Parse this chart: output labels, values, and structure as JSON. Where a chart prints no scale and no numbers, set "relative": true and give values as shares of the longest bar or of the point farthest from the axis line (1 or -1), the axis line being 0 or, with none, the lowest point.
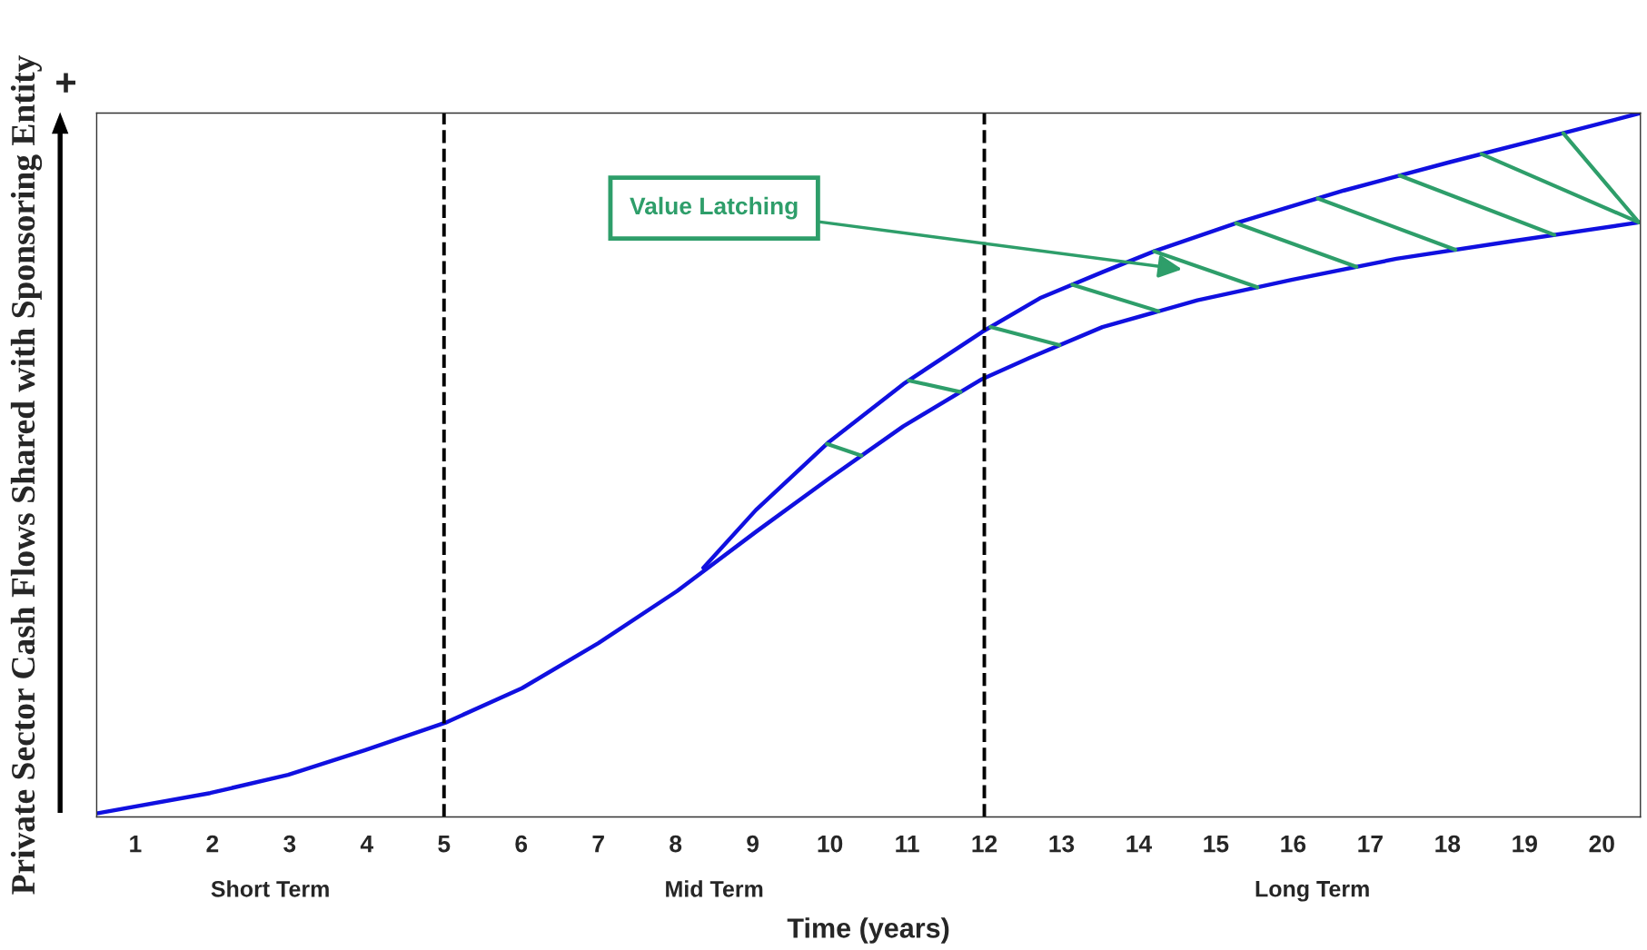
{
  "chart_data": {
    "type": "line",
    "relative": true,
    "xlabel": "Time (years)",
    "ylabel": "Private Sector Cash Flows Shared with Sponsoring Entity",
    "xlim": [
      0.5,
      20.5
    ],
    "xticks": [
      1,
      2,
      3,
      4,
      5,
      6,
      7,
      8,
      9,
      10,
      11,
      12,
      13,
      14,
      15,
      16,
      17,
      18,
      19,
      20
    ],
    "series": [
      {
        "color": "#1010e0",
        "x": [
          0.5,
          1.97,
          2.98,
          3.98,
          5.02,
          6.01,
          7.0,
          8.02,
          9.04,
          9.99,
          10.95,
          11.97,
          12.58,
          13.53,
          14.76,
          15.98,
          17.34,
          18.84,
          20.5
        ],
        "values": [
          0.005,
          0.034,
          0.06,
          0.095,
          0.134,
          0.183,
          0.247,
          0.321,
          0.405,
          0.481,
          0.555,
          0.622,
          0.652,
          0.696,
          0.734,
          0.763,
          0.793,
          0.818,
          0.845
        ]
      },
      {
        "color": "#1010e0",
        "x": [
          8.36,
          9.04,
          9.99,
          10.95,
          11.97,
          12.72,
          13.53,
          14.21,
          15.3,
          16.66,
          18.02,
          19.52,
          20.5
        ],
        "values": [
          0.354,
          0.436,
          0.533,
          0.615,
          0.689,
          0.737,
          0.774,
          0.804,
          0.845,
          0.89,
          0.93,
          0.972,
          1.0
        ]
      }
    ],
    "ref_lines": [
      {
        "axis": "x",
        "value": 5,
        "color": "#000000",
        "line_style": "dashed"
      },
      {
        "axis": "x",
        "value": 12,
        "color": "#000000",
        "line_style": "dashed"
      }
    ],
    "annotations": [
      "+",
      "Short Term",
      "Mid Term",
      "Long Term",
      "Value Latching"
    ],
    "grid": false,
    "legend": false,
    "marker": "none",
    "line_style": "solid"
  }
}
